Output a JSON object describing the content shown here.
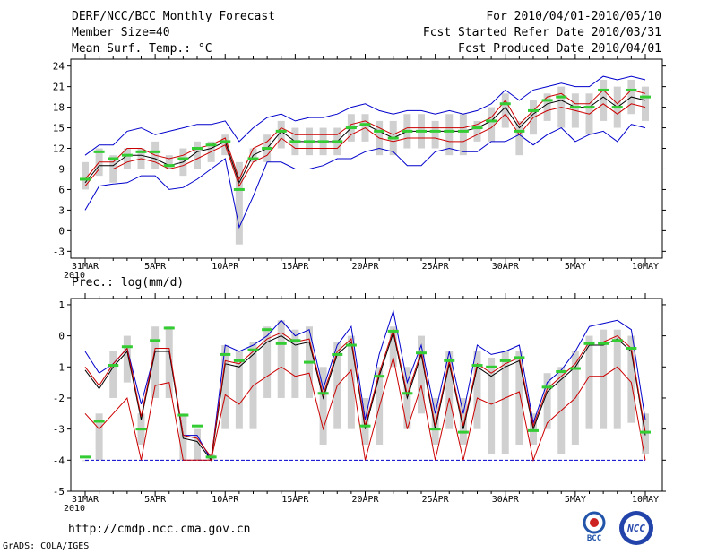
{
  "header": {
    "title": "DERF/NCC/BCC Monthly Forecast",
    "member_size": "Member Size=40",
    "variable": "Mean Surf. Temp.: °C",
    "period": "For 2010/04/01-2010/05/10",
    "started": "Fcst Started Refer Date 2010/03/31",
    "produced": "Fcst Produced Date 2010/04/01"
  },
  "footer": {
    "url": "http://cmdp.ncc.cma.gov.cn",
    "grads": "GrADS: COLA/IGES",
    "logo_bcc_text": "BCC",
    "logo_ncc_text": "NCC"
  },
  "colors": {
    "ensemble_mean": "#000000",
    "spread": "#cc0000",
    "range": "#0000cc",
    "member_box": "#d0d0d0",
    "marker": "#33cc33",
    "baseline": "#0000cc"
  },
  "chart_data": [
    {
      "type": "line",
      "title": "Mean Surf. Temp.: °C",
      "x_days": 40,
      "x_ticks": [
        {
          "day": 0,
          "label": "31MAR",
          "sub": "2010"
        },
        {
          "day": 5,
          "label": "5APR"
        },
        {
          "day": 10,
          "label": "10APR"
        },
        {
          "day": 15,
          "label": "15APR"
        },
        {
          "day": 20,
          "label": "20APR"
        },
        {
          "day": 25,
          "label": "25APR"
        },
        {
          "day": 30,
          "label": "30APR"
        },
        {
          "day": 35,
          "label": "5MAY"
        },
        {
          "day": 40,
          "label": "10MAY"
        }
      ],
      "ylim": [
        -4,
        25
      ],
      "y_ticks": [
        -3,
        0,
        3,
        6,
        9,
        12,
        15,
        18,
        21,
        24
      ],
      "series": [
        {
          "name": "max",
          "values": [
            3,
            6.5,
            6.8,
            7,
            8,
            8,
            6,
            6.3,
            7.5,
            9,
            10.5,
            0.5,
            5,
            10,
            10,
            9,
            9,
            9.5,
            10.5,
            10.5,
            11.5,
            12,
            11.5,
            9.5,
            9.5,
            11.5,
            12,
            11.5,
            11.5,
            13,
            13,
            14,
            12.5,
            14,
            15,
            13,
            14,
            14.5,
            13,
            15.5,
            15
          ]
        },
        {
          "name": "upper_spread",
          "values": [
            7.5,
            10,
            10,
            12,
            12,
            11,
            10.5,
            11,
            12,
            12.5,
            13.5,
            7.5,
            12,
            13,
            15,
            14,
            14,
            14,
            14,
            15.5,
            16,
            15,
            14,
            15,
            15,
            15,
            15,
            15,
            15.5,
            16.5,
            19,
            15.5,
            17.5,
            19.5,
            20,
            18.5,
            18.5,
            20.5,
            18.5,
            20.5,
            20
          ]
        },
        {
          "name": "mean",
          "values": [
            7,
            9.5,
            9.5,
            11,
            11,
            10.5,
            9.5,
            10,
            11.5,
            12,
            13,
            7,
            11,
            12,
            14.5,
            13,
            13,
            13,
            13,
            15,
            15.5,
            14.5,
            13.5,
            14.5,
            14.5,
            14.5,
            14.5,
            14.5,
            15,
            16,
            18,
            15,
            17,
            18.5,
            19,
            18,
            18,
            19.5,
            18,
            19.5,
            19
          ]
        },
        {
          "name": "lower_spread",
          "values": [
            6.5,
            9,
            9,
            10,
            10.5,
            10,
            9,
            9.5,
            10.5,
            11.5,
            12.5,
            6.5,
            10,
            11,
            13.5,
            12,
            12,
            12,
            12,
            14,
            15,
            13.5,
            13,
            13.5,
            13.5,
            13.5,
            13,
            13,
            14,
            15,
            17,
            14,
            16.5,
            17.5,
            18,
            17.5,
            17,
            18.5,
            17,
            18.5,
            18
          ]
        },
        {
          "name": "min",
          "values": [
            11,
            12.5,
            12.5,
            14.5,
            15,
            14,
            14.5,
            15,
            15.5,
            15.5,
            16,
            13,
            15,
            16.5,
            17,
            16,
            16.5,
            16.5,
            17,
            18,
            18.5,
            17.5,
            17,
            17.5,
            17.5,
            17,
            17.5,
            17,
            17.5,
            18.5,
            20.5,
            19,
            20.5,
            21,
            21.5,
            21,
            21,
            22.5,
            22,
            22.5,
            22
          ]
        },
        {
          "name": "box_low",
          "values": [
            6,
            8,
            7,
            9,
            9,
            9,
            9,
            8,
            9,
            10,
            11,
            -2,
            10,
            10,
            12,
            11,
            11,
            11,
            11,
            13,
            13,
            11,
            11,
            12,
            12,
            12,
            11,
            11,
            13,
            13,
            15,
            11,
            14,
            16,
            15,
            15,
            14,
            16,
            15,
            17,
            16
          ]
        },
        {
          "name": "box_high",
          "values": [
            10,
            12,
            11,
            12,
            12,
            13,
            11,
            12,
            13,
            13,
            14,
            10,
            12,
            14,
            16,
            15,
            15,
            15,
            15,
            17,
            17,
            16,
            16,
            17,
            17,
            16,
            17,
            17,
            16,
            18,
            20,
            16,
            19,
            20,
            21,
            20,
            20,
            22,
            21,
            22,
            21
          ]
        },
        {
          "name": "marker",
          "values": [
            7.5,
            11.5,
            10.5,
            11,
            11.5,
            11.5,
            9.5,
            10.5,
            12,
            12.5,
            13,
            6,
            10.5,
            12,
            14.5,
            13,
            13,
            13,
            13,
            15,
            15.5,
            14.5,
            13.5,
            14.5,
            14.5,
            14.5,
            14.5,
            14.5,
            15,
            16,
            18.5,
            14.5,
            17.5,
            19,
            19.5,
            18,
            18,
            20.5,
            18,
            20.5,
            19.5
          ]
        }
      ]
    },
    {
      "type": "line",
      "title": "Prec.: log(mm/d)",
      "x_days": 40,
      "x_ticks": [
        {
          "day": 0,
          "label": "31MAR",
          "sub": "2010"
        },
        {
          "day": 5,
          "label": "5APR"
        },
        {
          "day": 10,
          "label": "10APR"
        },
        {
          "day": 15,
          "label": "15APR"
        },
        {
          "day": 20,
          "label": "20APR"
        },
        {
          "day": 25,
          "label": "25APR"
        },
        {
          "day": 30,
          "label": "30APR"
        },
        {
          "day": 35,
          "label": "5MAY"
        },
        {
          "day": 40,
          "label": "10MAY"
        }
      ],
      "ylim": [
        -5,
        1.2
      ],
      "y_ticks": [
        -5,
        -4,
        -3,
        -2,
        -1,
        0,
        1
      ],
      "series": [
        {
          "name": "max",
          "values": [
            -0.5,
            -1.2,
            -0.9,
            -0.4,
            -2.2,
            -0.5,
            -0.5,
            -3.2,
            -3.2,
            -4,
            -0.3,
            -0.5,
            -0.3,
            0,
            0.5,
            0,
            0.2,
            -1.7,
            -0.3,
            0.3,
            -2.7,
            -0.6,
            0.8,
            -1.5,
            -0.3,
            -2.5,
            -0.5,
            -2.5,
            -0.3,
            -0.6,
            -0.5,
            -0.3,
            -2.8,
            -1.5,
            -1.1,
            -0.5,
            0.3,
            0.4,
            0.5,
            0.2,
            -2.7
          ]
        },
        {
          "name": "mean",
          "values": [
            -1.1,
            -1.7,
            -1,
            -0.5,
            -2.7,
            -0.5,
            -0.5,
            -3.3,
            -3.4,
            -4,
            -0.9,
            -1,
            -0.6,
            -0.2,
            0,
            -0.3,
            -0.2,
            -2,
            -0.6,
            -0.2,
            -3,
            -1.3,
            0.1,
            -2,
            -0.6,
            -3,
            -0.9,
            -3,
            -1,
            -1.3,
            -1,
            -0.8,
            -3,
            -1.8,
            -1.4,
            -1,
            -0.3,
            -0.3,
            -0.1,
            -0.5,
            -3.2
          ]
        },
        {
          "name": "spread_upper",
          "values": [
            -1,
            -1.6,
            -0.9,
            -0.4,
            -2.6,
            -0.4,
            -0.4,
            -3.2,
            -3.3,
            -3.9,
            -0.8,
            -0.9,
            -0.5,
            -0.1,
            0.1,
            -0.2,
            -0.1,
            -1.9,
            -0.5,
            -0.1,
            -2.9,
            -1.2,
            0.2,
            -1.9,
            -0.5,
            -2.9,
            -0.8,
            -2.9,
            -0.9,
            -1.2,
            -0.9,
            -0.7,
            -2.9,
            -1.7,
            -1.3,
            -0.9,
            -0.2,
            -0.2,
            0,
            -0.4,
            -3.1
          ]
        },
        {
          "name": "lower",
          "values": [
            -2.5,
            -3,
            -2.5,
            -2,
            -4,
            -1.6,
            -1.5,
            -4,
            -4,
            -4,
            -1.9,
            -2.2,
            -1.6,
            -1.3,
            -1,
            -1.3,
            -1.2,
            -3,
            -1.6,
            -1.1,
            -4,
            -2.3,
            -0.7,
            -3,
            -1.6,
            -4,
            -2,
            -4,
            -2,
            -2.2,
            -2,
            -1.8,
            -4,
            -2.8,
            -2.4,
            -2,
            -1.3,
            -1.3,
            -1,
            -1.5,
            -4
          ]
        },
        {
          "name": "box_low",
          "values": [
            -4,
            -4,
            -2,
            -1.5,
            -3.5,
            -2,
            -2,
            -4,
            -4,
            -4,
            -3,
            -3,
            -3,
            -2,
            -2,
            -2,
            -2,
            -3.5,
            -3,
            -3,
            -3.5,
            -3.5,
            -1,
            -3,
            -2.5,
            -3.5,
            -3,
            -3.5,
            -3,
            -3.8,
            -3.8,
            -3.5,
            -3.5,
            -3,
            -3.8,
            -3.5,
            -3,
            -3,
            -3,
            -2.8,
            -3.8
          ]
        },
        {
          "name": "box_high",
          "values": [
            -4,
            -2.5,
            -0.5,
            0,
            -2.5,
            0.3,
            0.3,
            -2.5,
            -3,
            -3.8,
            -0.3,
            -0.5,
            -0.2,
            0.3,
            0.5,
            0.2,
            0.3,
            -1,
            -0.2,
            0,
            -2,
            -1,
            0.3,
            -1,
            0,
            -2,
            -0.5,
            -2,
            -0.5,
            -0.7,
            -0.5,
            -0.5,
            -2.5,
            -1.2,
            -1,
            -0.5,
            0,
            0.2,
            0.2,
            0,
            -2.5
          ]
        },
        {
          "name": "marker",
          "values": [
            -3.9,
            -2.75,
            -0.95,
            -0.35,
            -3,
            -0.15,
            0.25,
            -2.55,
            -2.9,
            -3.9,
            -0.6,
            -0.8,
            -0.45,
            0.2,
            -0.25,
            -0.15,
            -0.85,
            -1.85,
            -0.6,
            -0.3,
            -2.9,
            -1.3,
            0.15,
            -1.85,
            -0.55,
            -3,
            -0.8,
            -3.1,
            -0.95,
            -1,
            -0.8,
            -0.7,
            -3.05,
            -1.65,
            -1.15,
            -1.05,
            -0.25,
            -0.25,
            -0.15,
            -0.4,
            -3.1
          ]
        }
      ],
      "baseline": -4
    }
  ]
}
